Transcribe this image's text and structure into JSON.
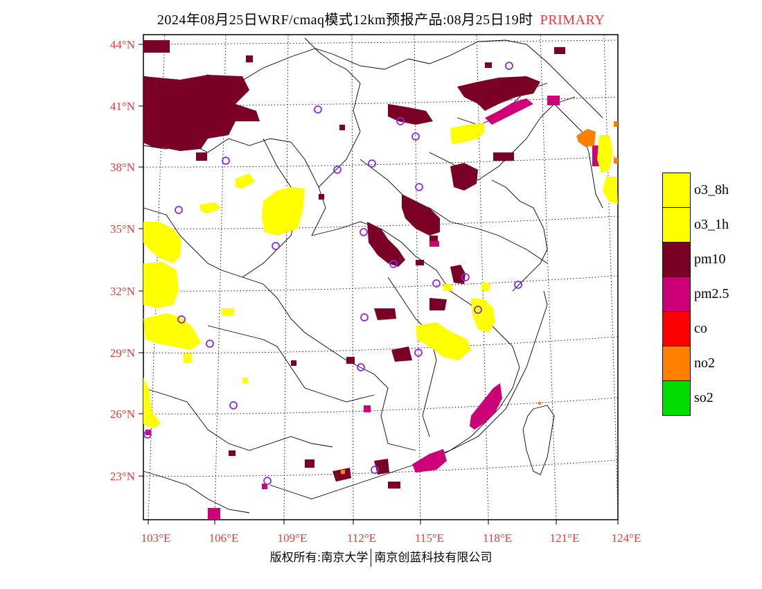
{
  "header": {
    "title": "2024年08月25日WRF/cmaq模式12km预报产品:08月25日19时",
    "tag": "PRIMARY",
    "tag_color": "#e33b3b"
  },
  "map": {
    "lat_labels": [
      "44°N",
      "41°N",
      "38°N",
      "35°N",
      "32°N",
      "29°N",
      "26°N",
      "23°N"
    ],
    "lon_labels": [
      "103°E",
      "106°E",
      "109°E",
      "112°E",
      "115°E",
      "118°E",
      "121°E",
      "124°E"
    ],
    "label_color": "#e33b3b",
    "pollutant_colors": {
      "o3": "#ffff00",
      "pm10": "#7a0026",
      "pm25": "#cc0077",
      "co": "#ff0000",
      "no2": "#ff7f00",
      "so2": "#00dd00"
    },
    "station_color": "#8a2be2"
  },
  "legend": [
    {
      "label": "o3_8h",
      "color": "#ffff00"
    },
    {
      "label": "o3_1h",
      "color": "#ffff00"
    },
    {
      "label": "pm10",
      "color": "#7a0026"
    },
    {
      "label": "pm2.5",
      "color": "#cc0077"
    },
    {
      "label": "co",
      "color": "#ff0000"
    },
    {
      "label": "no2",
      "color": "#ff7f00"
    },
    {
      "label": "so2",
      "color": "#00dd00"
    }
  ],
  "footer": {
    "left": "版权所有:南京大学",
    "right": "南京创蓝科技有限公司"
  }
}
